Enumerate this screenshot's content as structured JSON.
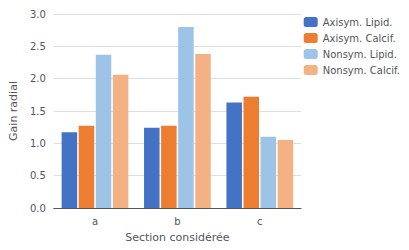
{
  "chart_data": {
    "type": "bar",
    "categories": [
      "a",
      "b",
      "c"
    ],
    "series": [
      {
        "name": "Axisym. Lipid.",
        "color": "#4472C4",
        "values": [
          1.17,
          1.24,
          1.63
        ]
      },
      {
        "name": "Axisym. Calcif.",
        "color": "#ED7D31",
        "values": [
          1.27,
          1.27,
          1.72
        ]
      },
      {
        "name": "Nonsym. Lipid.",
        "color": "#9DC3E6",
        "values": [
          2.37,
          2.8,
          1.1
        ]
      },
      {
        "name": "Nonsym. Calcif.",
        "color": "#F4B183",
        "values": [
          2.06,
          2.38,
          1.05
        ]
      }
    ],
    "xlabel": "Section considérée",
    "ylabel": "Gain radial",
    "ylim": [
      0,
      3
    ],
    "yticks": [
      {
        "value": 0,
        "label": "0.0"
      },
      0.5,
      {
        "value": 1,
        "label": "1.0"
      },
      1.5,
      {
        "value": 2,
        "label": "2.0"
      },
      2.5,
      {
        "value": 3,
        "label": "3.0"
      }
    ],
    "grid": true,
    "legend": "upper right"
  }
}
